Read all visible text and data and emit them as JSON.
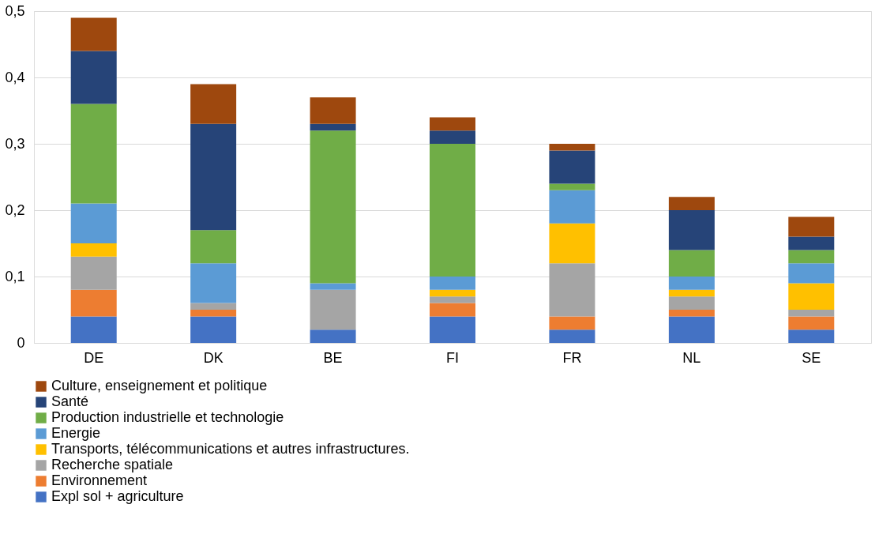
{
  "chart_data": {
    "type": "bar",
    "stacked": true,
    "categories": [
      "DE",
      "DK",
      "BE",
      "FI",
      "FR",
      "NL",
      "SE"
    ],
    "series": [
      {
        "name": "Expl sol + agriculture",
        "color": "#4472c4",
        "values": [
          0.04,
          0.04,
          0.02,
          0.04,
          0.02,
          0.04,
          0.02
        ]
      },
      {
        "name": "Environnement",
        "color": "#ed7d31",
        "values": [
          0.04,
          0.01,
          0,
          0.02,
          0.02,
          0.01,
          0.02
        ]
      },
      {
        "name": "Recherche spatiale",
        "color": "#a5a5a5",
        "values": [
          0.05,
          0.01,
          0.06,
          0.01,
          0.08,
          0.02,
          0.01
        ]
      },
      {
        "name": "Transports, télécommunications et autres infrastructures.",
        "color": "#ffc000",
        "values": [
          0.02,
          0,
          0,
          0.01,
          0.06,
          0.01,
          0.04
        ]
      },
      {
        "name": "Energie",
        "color": "#5b9bd5",
        "values": [
          0.06,
          0.06,
          0.01,
          0.02,
          0.05,
          0.02,
          0.03
        ]
      },
      {
        "name": "Production industrielle et technologie",
        "color": "#70ad47",
        "values": [
          0.15,
          0.05,
          0.23,
          0.2,
          0.01,
          0.04,
          0.02
        ]
      },
      {
        "name": "Santé",
        "color": "#264478",
        "values": [
          0.08,
          0.16,
          0.01,
          0.02,
          0.05,
          0.06,
          0.02
        ]
      },
      {
        "name": "Culture, enseignement et politique",
        "color": "#9e480e",
        "values": [
          0.05,
          0.06,
          0.04,
          0.02,
          0.01,
          0.02,
          0.03
        ]
      }
    ],
    "ylim": [
      0,
      0.5
    ],
    "yticks": [
      0,
      {
        "value": 0.1,
        "label": "0,1"
      },
      {
        "value": 0.2,
        "label": "0,2"
      },
      {
        "value": 0.3,
        "label": "0,3"
      },
      {
        "value": 0.4,
        "label": "0,4"
      },
      {
        "value": 0.5,
        "label": "0,5"
      }
    ],
    "grid": "y",
    "legend": "bottom"
  }
}
